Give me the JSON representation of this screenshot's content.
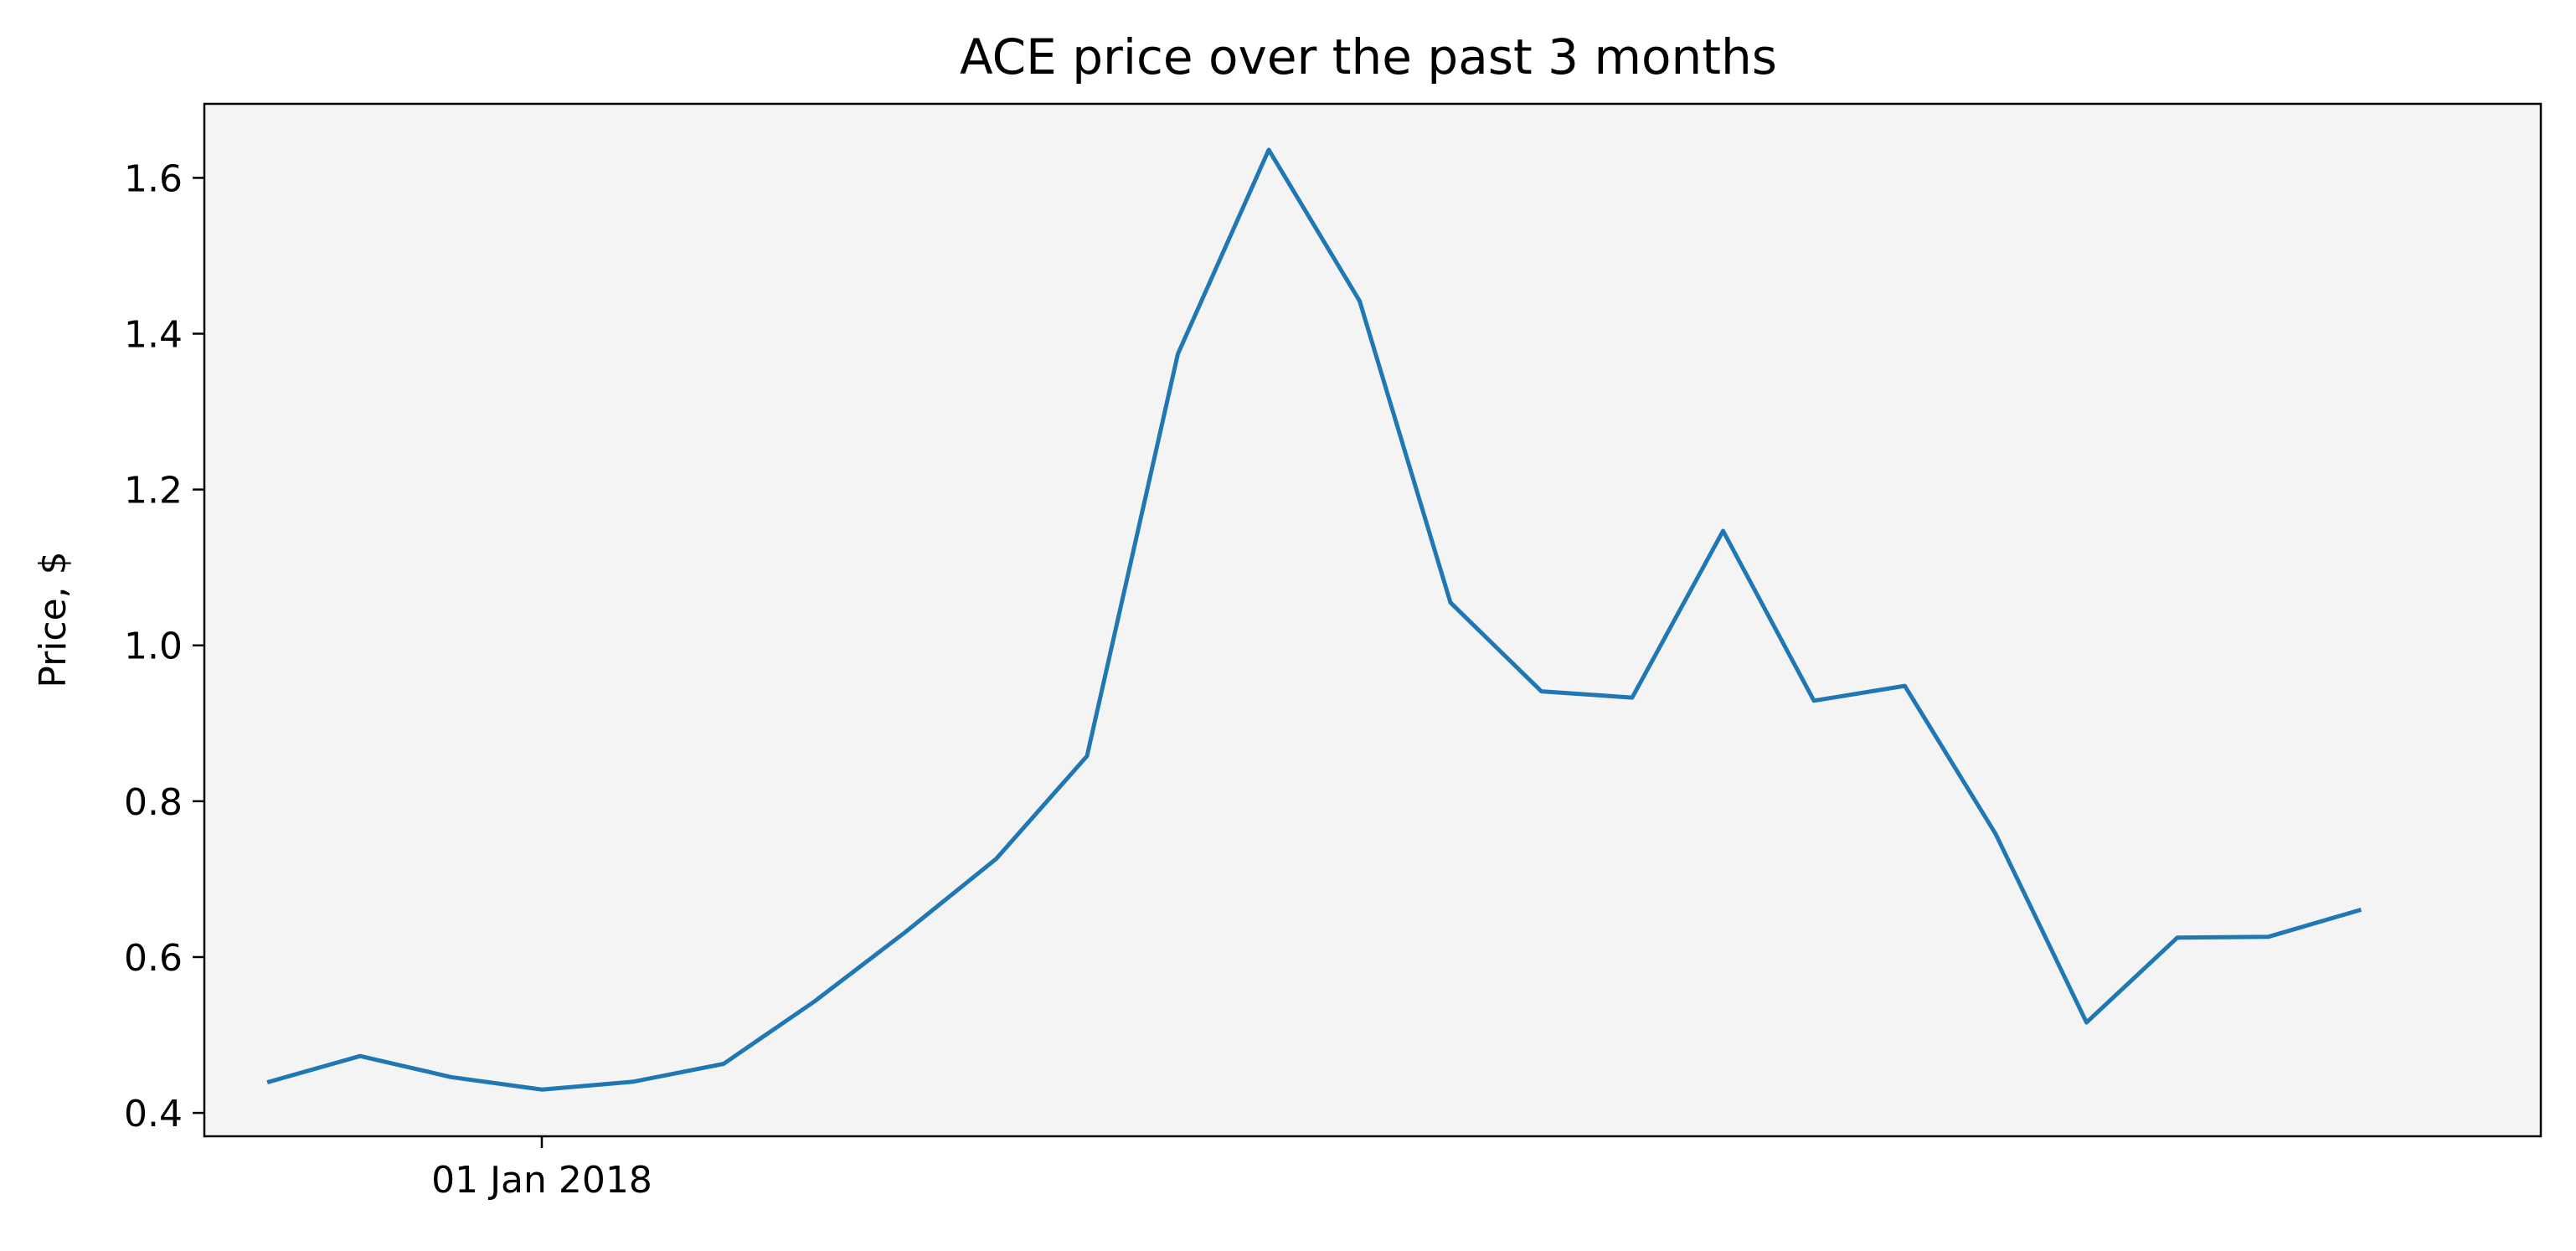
{
  "chart_data": {
    "type": "line",
    "title": "ACE price over the past 3 months",
    "xlabel": "",
    "ylabel": "Price, $",
    "x": [
      "2017-12-11",
      "2017-12-18",
      "2017-12-25",
      "2018-01-01",
      "2018-01-08",
      "2018-01-15",
      "2018-01-22",
      "2018-01-29",
      "2018-02-05",
      "2018-02-12",
      "2018-02-19",
      "2018-02-26",
      "2018-03-05",
      "2018-03-12",
      "2018-03-19",
      "2018-03-26",
      "2018-04-02",
      "2018-04-09",
      "2018-04-16",
      "2018-04-23",
      "2018-04-30",
      "2018-05-07",
      "2018-05-14",
      "2018-05-21",
      "2018-05-28"
    ],
    "series": [
      {
        "values": [
          0.44,
          0.473,
          0.446,
          0.43,
          0.44,
          0.463,
          0.543,
          0.632,
          0.726,
          0.858,
          1.374,
          1.636,
          1.442,
          1.055,
          0.941,
          0.933,
          1.147,
          0.929,
          0.948,
          0.758,
          0.516,
          0.625,
          0.626,
          0.66,
          null
        ],
        "color": "#1f77b4"
      }
    ],
    "x_ticks": [
      {
        "value": "2018-01-01",
        "label": "01 Jan 2018"
      }
    ],
    "y_ticks": [
      0.4,
      0.6,
      0.8,
      1.0,
      1.2,
      1.4,
      1.6
    ],
    "y_tick_labels": [
      "0.4",
      "0.6",
      "0.8",
      "1.0",
      "1.2",
      "1.4",
      "1.6"
    ],
    "xlim": [
      "2017-12-06",
      "2018-06-04"
    ],
    "ylim": [
      0.37,
      1.695
    ],
    "grid": false,
    "legend": "none",
    "colors": {
      "plot_background": "#f4f4f4",
      "line": "#1f77b4",
      "axes": "#000000"
    }
  }
}
